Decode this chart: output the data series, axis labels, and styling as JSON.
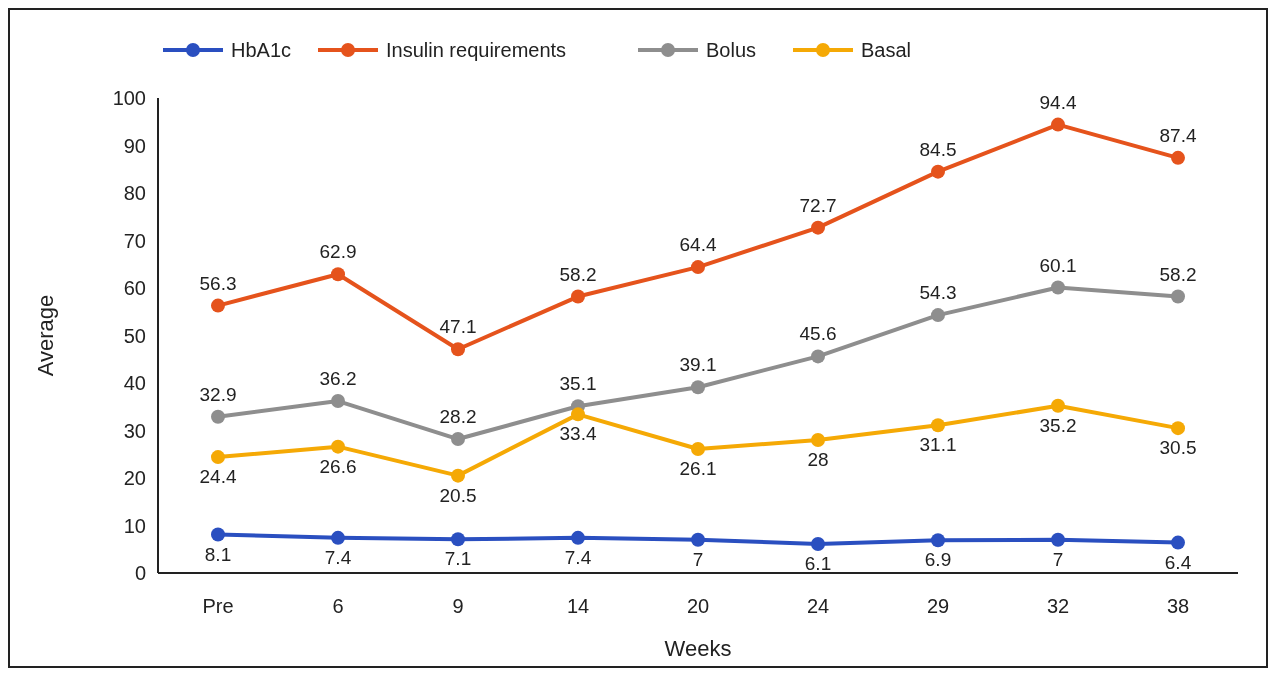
{
  "chart_data": {
    "type": "line",
    "xlabel": "Weeks",
    "ylabel": "Average",
    "categories": [
      "Pre",
      "6",
      "9",
      "14",
      "20",
      "24",
      "29",
      "32",
      "38"
    ],
    "series": [
      {
        "name": "HbA1c",
        "color": "#2a4fc0",
        "values": [
          8.1,
          7.4,
          7.1,
          7.4,
          7,
          6.1,
          6.9,
          7,
          6.4
        ]
      },
      {
        "name": "Insulin requirements",
        "color": "#e5531c",
        "values": [
          56.3,
          62.9,
          47.1,
          58.2,
          64.4,
          72.7,
          84.5,
          94.4,
          87.4
        ]
      },
      {
        "name": "Bolus",
        "color": "#8e8e8e",
        "values": [
          32.9,
          36.2,
          28.2,
          35.1,
          39.1,
          45.6,
          54.3,
          60.1,
          58.2
        ]
      },
      {
        "name": "Basal",
        "color": "#f5a905",
        "values": [
          24.4,
          26.6,
          20.5,
          33.4,
          26.1,
          28,
          31.1,
          35.2,
          30.5
        ]
      }
    ],
    "ylim": [
      0,
      100
    ],
    "yticks": [
      0,
      10,
      20,
      30,
      40,
      50,
      60,
      70,
      80,
      90,
      100
    ],
    "grid": false,
    "legend": "top",
    "marker": "circle",
    "line_style": "solid",
    "data_labels": true
  }
}
